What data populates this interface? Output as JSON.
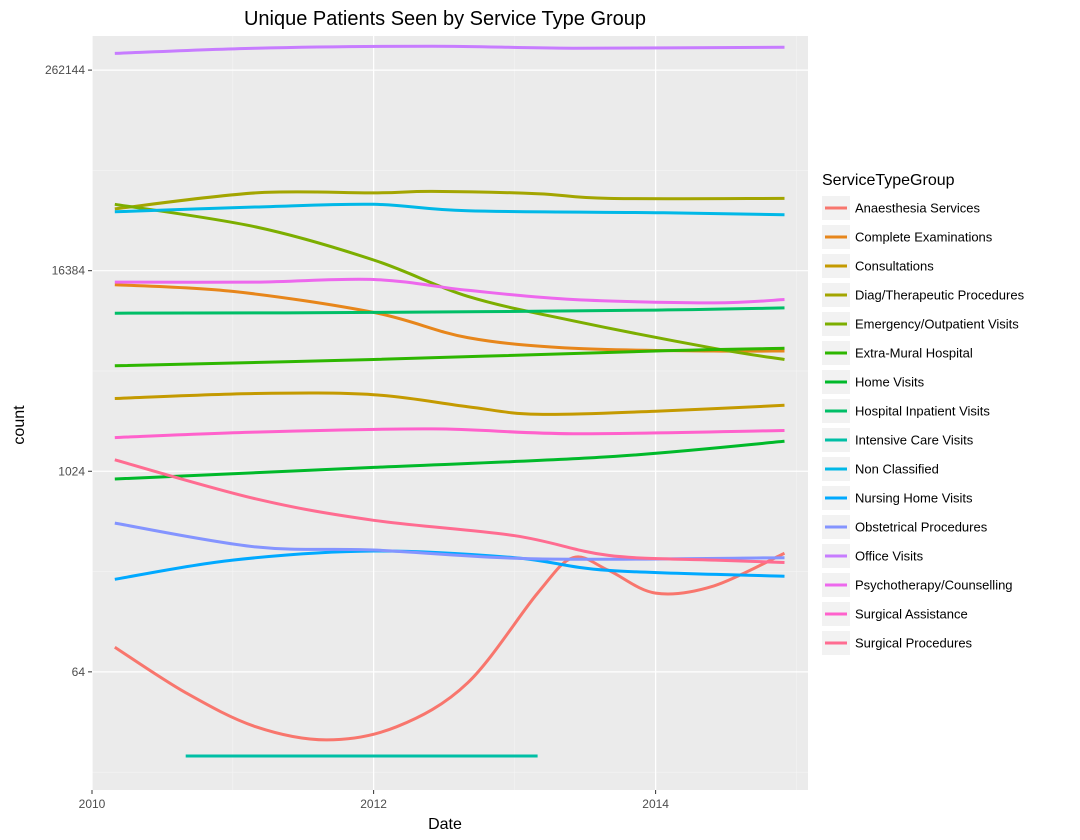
{
  "chart_data": {
    "type": "line",
    "title": "Unique Patients Seen by Service Type Group",
    "xlabel": "Date",
    "ylabel": "count",
    "x_scale": "time",
    "y_scale": "log2",
    "xlim": [
      "2010-01-01",
      "2015-01-31"
    ],
    "ylim": [
      12.5,
      420000
    ],
    "x_ticks": [
      "2010-01-01",
      "2012-01-01",
      "2014-01-01"
    ],
    "x_tick_labels": [
      "2010",
      "2012",
      "2014"
    ],
    "y_ticks": [
      64,
      1024,
      16384,
      262144
    ],
    "y_tick_labels": [
      "64",
      "1024",
      "16384",
      "262144"
    ],
    "grid": true,
    "legend": {
      "title": "ServiceTypeGroup",
      "position": "right"
    },
    "series": [
      {
        "name": "Anaesthesia Services",
        "color": "#F8766D",
        "x": [
          "2010-03-01",
          "2010-09-01",
          "2011-03-01",
          "2011-09-01",
          "2012-03-01",
          "2012-09-01",
          "2013-03-01",
          "2013-06-01",
          "2013-09-01",
          "2014-01-01",
          "2014-06-01",
          "2014-12-01"
        ],
        "y": [
          90,
          48,
          30,
          25,
          30,
          55,
          190,
          310,
          260,
          190,
          210,
          330
        ]
      },
      {
        "name": "Complete Examinations",
        "color": "#E7861B",
        "x": [
          "2010-03-01",
          "2011-01-01",
          "2012-01-01",
          "2012-09-01",
          "2013-06-01",
          "2014-06-01",
          "2014-12-01"
        ],
        "y": [
          13500,
          12300,
          9200,
          6500,
          5600,
          5400,
          5400
        ]
      },
      {
        "name": "Consultations",
        "color": "#C49A00",
        "x": [
          "2010-03-01",
          "2011-03-01",
          "2012-01-01",
          "2012-09-01",
          "2013-03-01",
          "2014-01-01",
          "2014-12-01"
        ],
        "y": [
          2800,
          3000,
          2950,
          2500,
          2250,
          2350,
          2550
        ]
      },
      {
        "name": "Diag/Therapeutic Procedures",
        "color": "#A3A500",
        "x": [
          "2010-03-01",
          "2011-03-01",
          "2012-01-01",
          "2012-06-01",
          "2013-03-01",
          "2013-09-01",
          "2014-12-01"
        ],
        "y": [
          38500,
          48000,
          48000,
          49000,
          47500,
          44500,
          44500
        ]
      },
      {
        "name": "Emergency/Outpatient Visits",
        "color": "#7CAE00",
        "x": [
          "2010-03-01",
          "2011-03-01",
          "2012-01-01",
          "2012-09-01",
          "2013-06-01",
          "2014-06-01",
          "2014-12-01"
        ],
        "y": [
          41000,
          30000,
          19000,
          11500,
          8200,
          5600,
          4800
        ]
      },
      {
        "name": "Extra-Mural Hospital",
        "color": "#2DB600",
        "x": [
          "2010-03-01",
          "2012-01-01",
          "2014-01-01",
          "2014-12-01"
        ],
        "y": [
          4400,
          4800,
          5400,
          5600
        ]
      },
      {
        "name": "Home Visits",
        "color": "#00B92A",
        "x": [
          "2010-03-01",
          "2012-01-01",
          "2013-09-01",
          "2014-12-01"
        ],
        "y": [
          920,
          1080,
          1250,
          1550
        ]
      },
      {
        "name": "Hospital Inpatient Visits",
        "color": "#00BE67",
        "x": [
          "2010-03-01",
          "2012-01-01",
          "2014-01-01",
          "2014-12-01"
        ],
        "y": [
          9100,
          9200,
          9500,
          9800
        ]
      },
      {
        "name": "Intensive Care Visits",
        "color": "#00BFA5",
        "x": [
          "2010-09-01",
          "2013-03-01"
        ],
        "y": [
          20,
          20
        ]
      },
      {
        "name": "Non Classified",
        "color": "#00B8E7",
        "x": [
          "2010-03-01",
          "2011-03-01",
          "2012-01-01",
          "2012-09-01",
          "2014-01-01",
          "2014-12-01"
        ],
        "y": [
          37000,
          39500,
          41000,
          37500,
          36500,
          35500
        ]
      },
      {
        "name": "Nursing Home Visits",
        "color": "#00A9FF",
        "x": [
          "2010-03-01",
          "2011-01-01",
          "2012-01-01",
          "2013-01-01",
          "2013-09-01",
          "2014-12-01"
        ],
        "y": [
          230,
          300,
          340,
          310,
          260,
          240
        ]
      },
      {
        "name": "Obstetrical Procedures",
        "color": "#8494FF",
        "x": [
          "2010-03-01",
          "2011-03-01",
          "2012-01-01",
          "2013-03-01",
          "2014-12-01"
        ],
        "y": [
          500,
          360,
          345,
          305,
          310
        ]
      },
      {
        "name": "Office Visits",
        "color": "#C77CFF",
        "x": [
          "2010-03-01",
          "2011-03-01",
          "2012-06-01",
          "2013-06-01",
          "2014-12-01"
        ],
        "y": [
          330000,
          355000,
          365000,
          355000,
          360000
        ]
      },
      {
        "name": "Psychotherapy/Counselling",
        "color": "#ED68ED",
        "x": [
          "2010-03-01",
          "2011-03-01",
          "2012-01-01",
          "2012-09-01",
          "2013-06-01",
          "2014-06-01",
          "2014-12-01"
        ],
        "y": [
          14000,
          14000,
          14500,
          12500,
          11000,
          10500,
          11000
        ]
      },
      {
        "name": "Surgical Assistance",
        "color": "#FF61CC",
        "x": [
          "2010-03-01",
          "2011-03-01",
          "2012-06-01",
          "2013-06-01",
          "2014-12-01"
        ],
        "y": [
          1630,
          1760,
          1840,
          1720,
          1800
        ]
      },
      {
        "name": "Surgical Procedures",
        "color": "#FF6C91",
        "x": [
          "2010-03-01",
          "2011-03-01",
          "2012-01-01",
          "2013-01-01",
          "2013-09-01",
          "2014-06-01",
          "2014-12-01"
        ],
        "y": [
          1200,
          700,
          520,
          420,
          320,
          300,
          290
        ]
      }
    ]
  }
}
